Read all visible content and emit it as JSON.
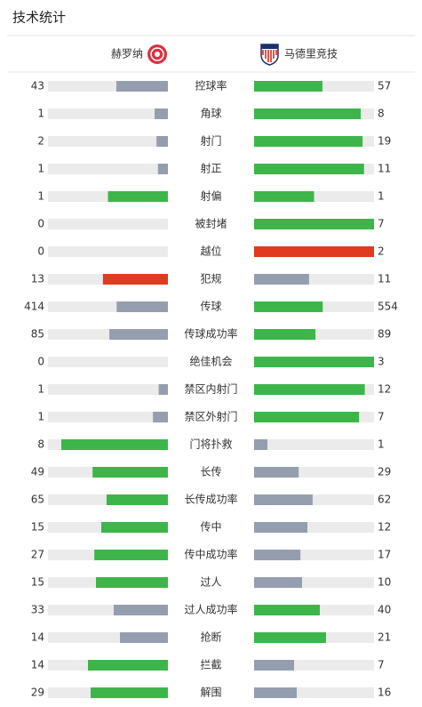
{
  "title": "技术统计",
  "teams": {
    "home": "赫罗纳",
    "away": "马德里竞技"
  },
  "stats": [
    {
      "label": "控球率",
      "home": 43,
      "away": 57,
      "home_color": "#959eaf",
      "away_color": "#3db54a"
    },
    {
      "label": "角球",
      "home": 1,
      "away": 8,
      "home_color": "#959eaf",
      "away_color": "#3db54a"
    },
    {
      "label": "射门",
      "home": 2,
      "away": 19,
      "home_color": "#959eaf",
      "away_color": "#3db54a"
    },
    {
      "label": "射正",
      "home": 1,
      "away": 11,
      "home_color": "#959eaf",
      "away_color": "#3db54a"
    },
    {
      "label": "射偏",
      "home": 1,
      "away": 1,
      "home_color": "#3db54a",
      "away_color": "#3db54a"
    },
    {
      "label": "被封堵",
      "home": 0,
      "away": 7,
      "home_color": "#959eaf",
      "away_color": "#3db54a"
    },
    {
      "label": "越位",
      "home": 0,
      "away": 2,
      "home_color": "#959eaf",
      "away_color": "#e03a1f"
    },
    {
      "label": "犯规",
      "home": 13,
      "away": 11,
      "home_color": "#e03a1f",
      "away_color": "#959eaf"
    },
    {
      "label": "传球",
      "home": 414,
      "away": 554,
      "home_color": "#959eaf",
      "away_color": "#3db54a"
    },
    {
      "label": "传球成功率",
      "home": 85,
      "away": 89,
      "home_color": "#959eaf",
      "away_color": "#3db54a"
    },
    {
      "label": "绝佳机会",
      "home": 0,
      "away": 3,
      "home_color": "#959eaf",
      "away_color": "#3db54a"
    },
    {
      "label": "禁区内射门",
      "home": 1,
      "away": 12,
      "home_color": "#959eaf",
      "away_color": "#3db54a"
    },
    {
      "label": "禁区外射门",
      "home": 1,
      "away": 7,
      "home_color": "#959eaf",
      "away_color": "#3db54a"
    },
    {
      "label": "门将扑救",
      "home": 8,
      "away": 1,
      "home_color": "#3db54a",
      "away_color": "#959eaf"
    },
    {
      "label": "长传",
      "home": 49,
      "away": 29,
      "home_color": "#3db54a",
      "away_color": "#959eaf"
    },
    {
      "label": "长传成功率",
      "home": 65,
      "away": 62,
      "home_color": "#3db54a",
      "away_color": "#959eaf"
    },
    {
      "label": "传中",
      "home": 15,
      "away": 12,
      "home_color": "#3db54a",
      "away_color": "#959eaf"
    },
    {
      "label": "传中成功率",
      "home": 27,
      "away": 17,
      "home_color": "#3db54a",
      "away_color": "#959eaf"
    },
    {
      "label": "过人",
      "home": 15,
      "away": 10,
      "home_color": "#3db54a",
      "away_color": "#959eaf"
    },
    {
      "label": "过人成功率",
      "home": 33,
      "away": 40,
      "home_color": "#959eaf",
      "away_color": "#3db54a"
    },
    {
      "label": "抢断",
      "home": 14,
      "away": 21,
      "home_color": "#959eaf",
      "away_color": "#3db54a"
    },
    {
      "label": "拦截",
      "home": 14,
      "away": 7,
      "home_color": "#3db54a",
      "away_color": "#959eaf"
    },
    {
      "label": "解围",
      "home": 29,
      "away": 16,
      "home_color": "#3db54a",
      "away_color": "#959eaf"
    }
  ]
}
